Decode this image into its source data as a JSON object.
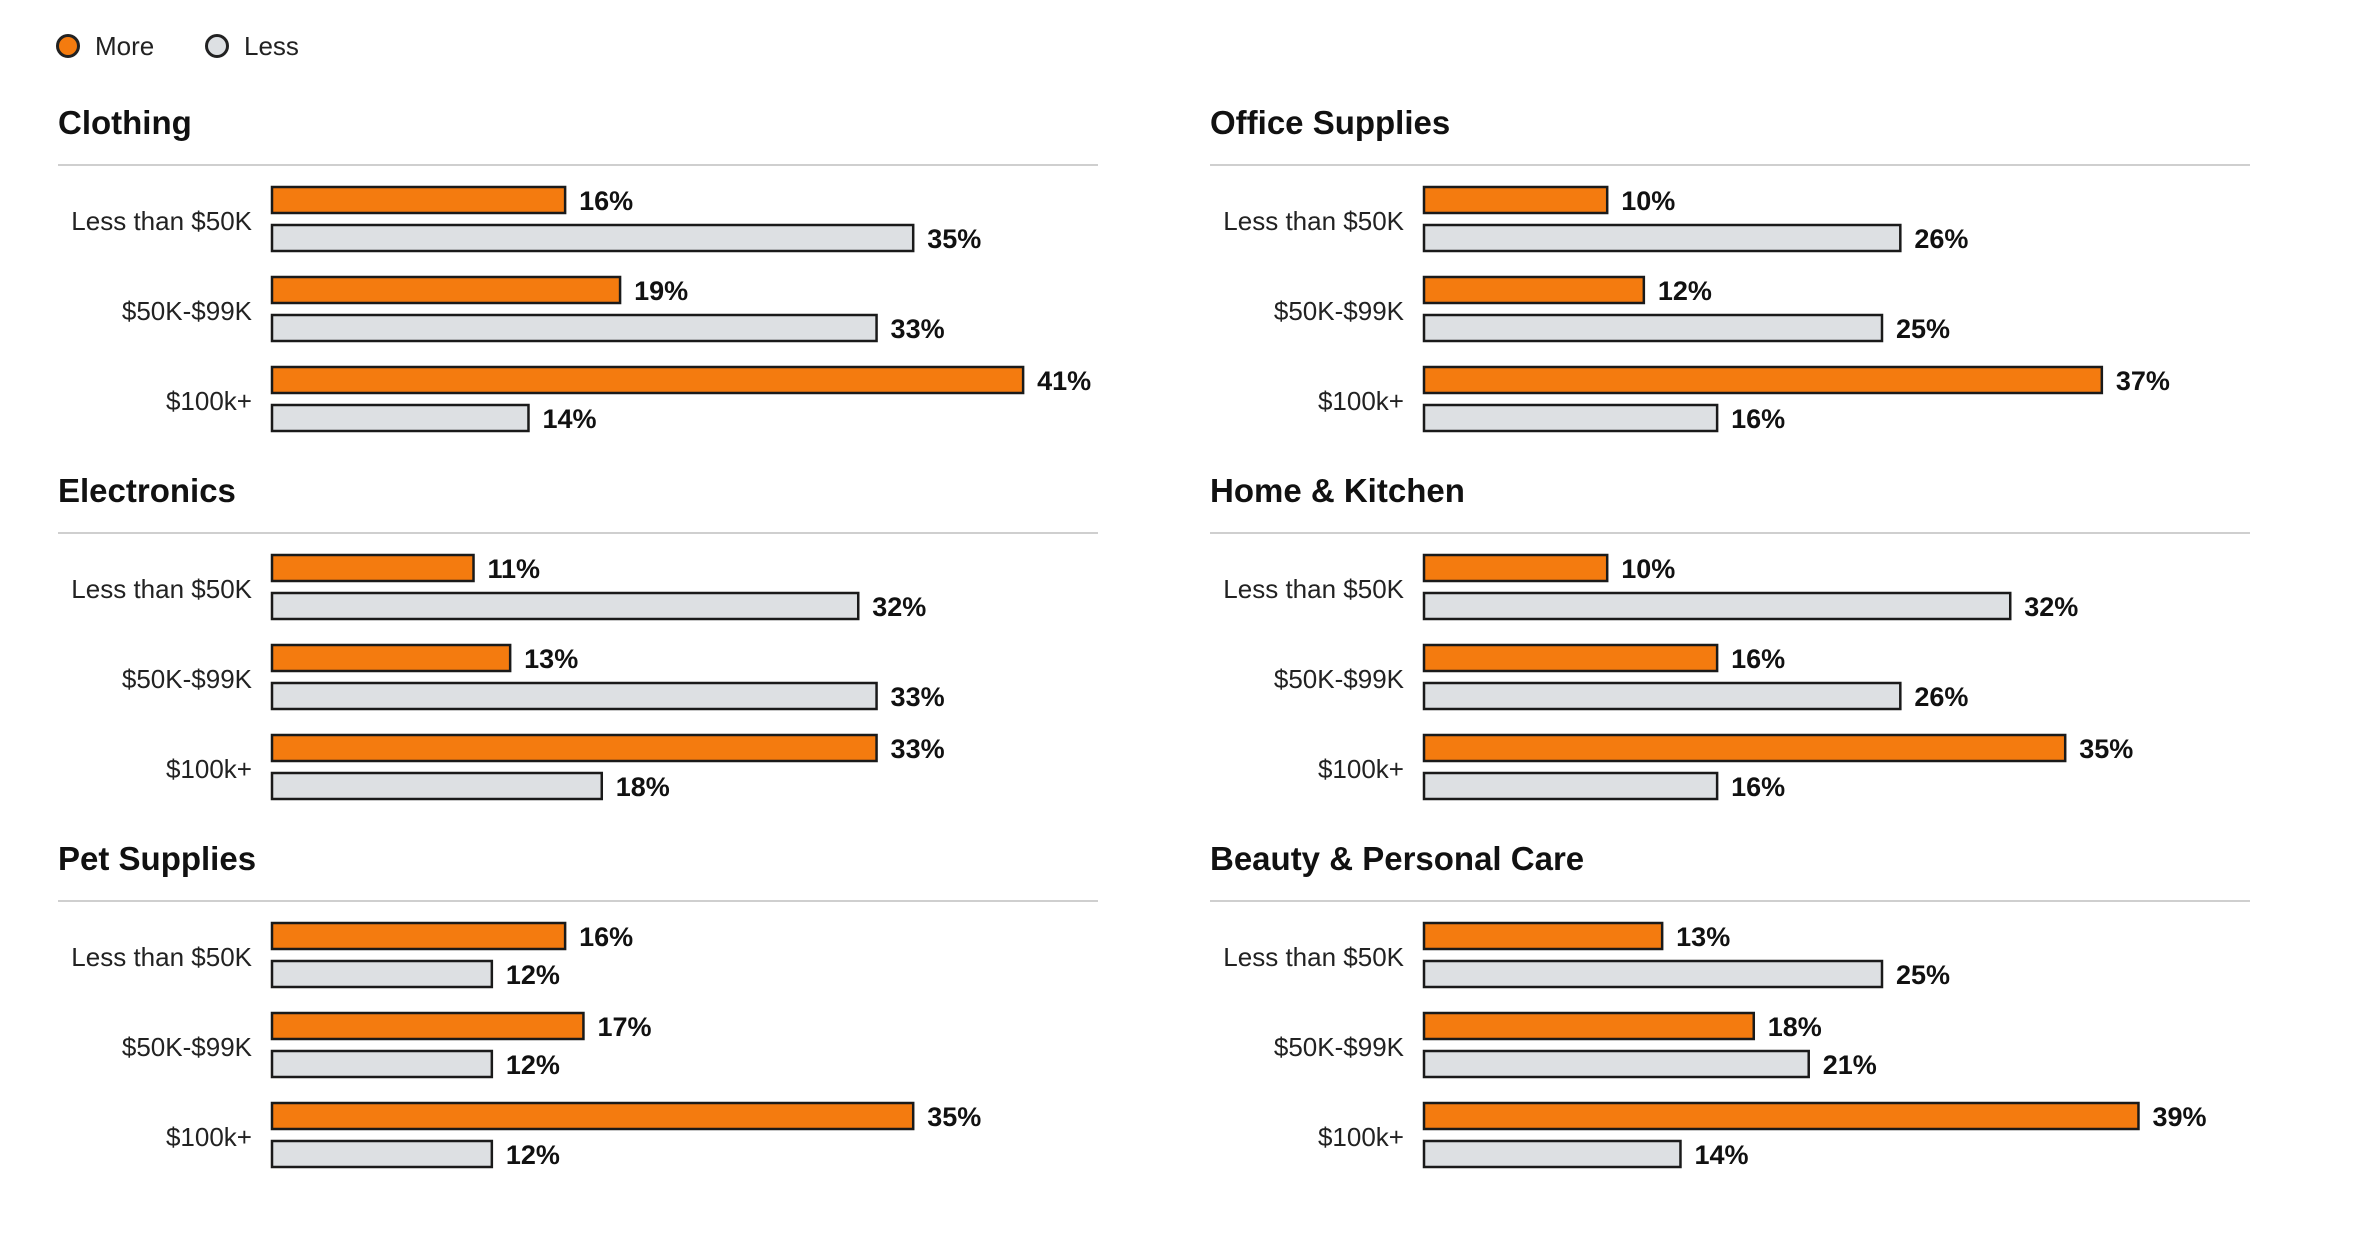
{
  "chart_data": {
    "type": "bar",
    "orientation": "horizontal",
    "legend": {
      "placement": "top-left",
      "entries": [
        {
          "label": "More",
          "color": "#F47B0F"
        },
        {
          "label": "Less",
          "color": "#DDE0E3"
        }
      ]
    },
    "unit": "%",
    "xlim": [
      0,
      41
    ],
    "grid": false,
    "panels": [
      {
        "title": "Clothing",
        "categories": [
          "Less than $50K",
          "$50K-$99K",
          "$100k+"
        ],
        "series": [
          {
            "name": "More",
            "values": [
              16,
              19,
              41
            ]
          },
          {
            "name": "Less",
            "values": [
              35,
              33,
              14
            ]
          }
        ]
      },
      {
        "title": "Office Supplies",
        "categories": [
          "Less than $50K",
          "$50K-$99K",
          "$100k+"
        ],
        "series": [
          {
            "name": "More",
            "values": [
              10,
              12,
              37
            ]
          },
          {
            "name": "Less",
            "values": [
              26,
              25,
              16
            ]
          }
        ]
      },
      {
        "title": "Electronics",
        "categories": [
          "Less than $50K",
          "$50K-$99K",
          "$100k+"
        ],
        "series": [
          {
            "name": "More",
            "values": [
              11,
              13,
              33
            ]
          },
          {
            "name": "Less",
            "values": [
              32,
              33,
              18
            ]
          }
        ]
      },
      {
        "title": "Home & Kitchen",
        "categories": [
          "Less than $50K",
          "$50K-$99K",
          "$100k+"
        ],
        "series": [
          {
            "name": "More",
            "values": [
              10,
              16,
              35
            ]
          },
          {
            "name": "Less",
            "values": [
              32,
              26,
              16
            ]
          }
        ]
      },
      {
        "title": "Pet Supplies",
        "categories": [
          "Less than $50K",
          "$50K-$99K",
          "$100k+"
        ],
        "series": [
          {
            "name": "More",
            "values": [
              16,
              17,
              35
            ]
          },
          {
            "name": "Less",
            "values": [
              12,
              12,
              12
            ]
          }
        ]
      },
      {
        "title": "Beauty & Personal Care",
        "categories": [
          "Less than $50K",
          "$50K-$99K",
          "$100k+"
        ],
        "series": [
          {
            "name": "More",
            "values": [
              13,
              18,
              39
            ]
          },
          {
            "name": "Less",
            "values": [
              25,
              21,
              14
            ]
          }
        ]
      }
    ]
  }
}
